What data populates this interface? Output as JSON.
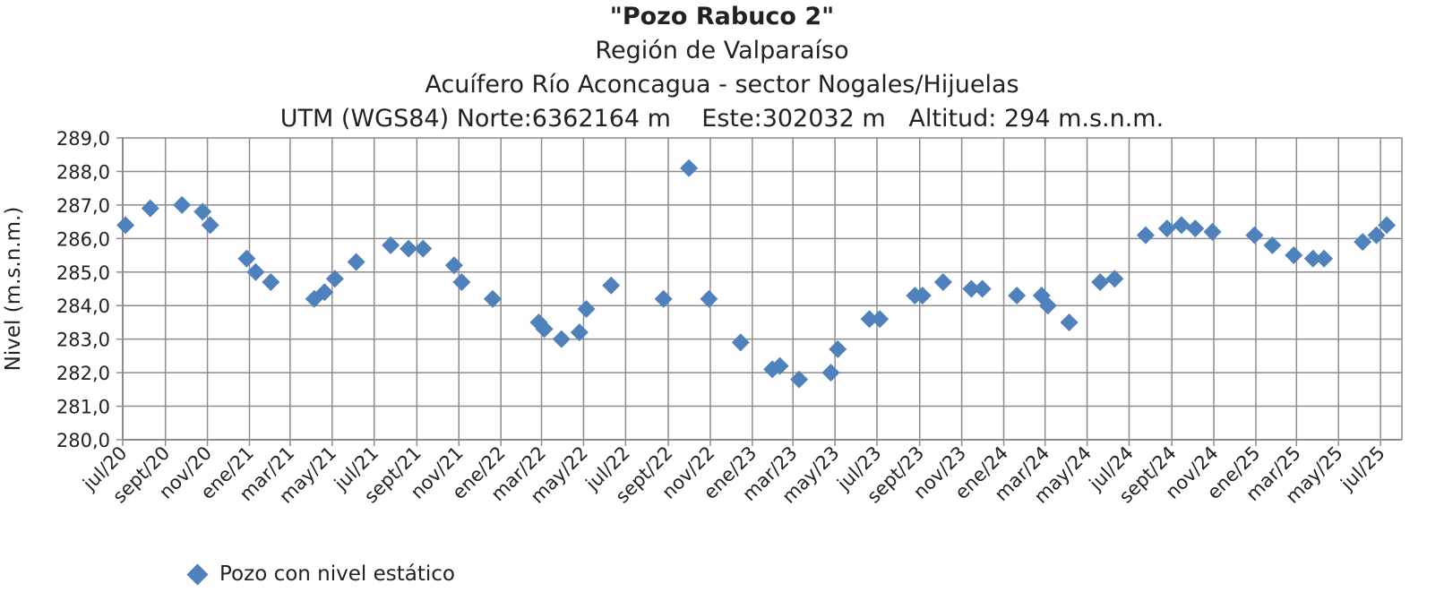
{
  "chart_data": {
    "type": "scatter",
    "title": "\"Pozo Rabuco 2\"",
    "subtitle_lines": [
      "Región de Valparaíso",
      "Acuífero Río Aconcagua - sector Nogales/Hijuelas",
      "UTM (WGS84) Norte:6362164 m    Este:302032 m   Altitud: 294 m.s.n.m."
    ],
    "ylabel": "Nivel (m.s.n.m.)",
    "xlabel": "",
    "ylim": [
      280.0,
      289.0
    ],
    "yticks": [
      "280,0",
      "281,0",
      "282,0",
      "283,0",
      "284,0",
      "285,0",
      "286,0",
      "287,0",
      "288,0",
      "289,0"
    ],
    "x_range": [
      "2020-07-01",
      "2025-08-01"
    ],
    "xticks": [
      {
        "date": "2020-07-01",
        "label": "jul/20"
      },
      {
        "date": "2020-09-01",
        "label": "sept/20"
      },
      {
        "date": "2020-11-01",
        "label": "nov/20"
      },
      {
        "date": "2021-01-01",
        "label": "ene/21"
      },
      {
        "date": "2021-03-01",
        "label": "mar/21"
      },
      {
        "date": "2021-05-01",
        "label": "may/21"
      },
      {
        "date": "2021-07-01",
        "label": "jul/21"
      },
      {
        "date": "2021-09-01",
        "label": "sept/21"
      },
      {
        "date": "2021-11-01",
        "label": "nov/21"
      },
      {
        "date": "2022-01-01",
        "label": "ene/22"
      },
      {
        "date": "2022-03-01",
        "label": "mar/22"
      },
      {
        "date": "2022-05-01",
        "label": "may/22"
      },
      {
        "date": "2022-07-01",
        "label": "jul/22"
      },
      {
        "date": "2022-09-01",
        "label": "sept/22"
      },
      {
        "date": "2022-11-01",
        "label": "nov/22"
      },
      {
        "date": "2023-01-01",
        "label": "ene/23"
      },
      {
        "date": "2023-03-01",
        "label": "mar/23"
      },
      {
        "date": "2023-05-01",
        "label": "may/23"
      },
      {
        "date": "2023-07-01",
        "label": "jul/23"
      },
      {
        "date": "2023-09-01",
        "label": "sept/23"
      },
      {
        "date": "2023-11-01",
        "label": "nov/23"
      },
      {
        "date": "2024-01-01",
        "label": "ene/24"
      },
      {
        "date": "2024-03-01",
        "label": "mar/24"
      },
      {
        "date": "2024-05-01",
        "label": "may/24"
      },
      {
        "date": "2024-07-01",
        "label": "jul/24"
      },
      {
        "date": "2024-09-01",
        "label": "sept/24"
      },
      {
        "date": "2024-11-01",
        "label": "nov/24"
      },
      {
        "date": "2025-01-01",
        "label": "ene/25"
      },
      {
        "date": "2025-03-01",
        "label": "mar/25"
      },
      {
        "date": "2025-05-01",
        "label": "may/25"
      },
      {
        "date": "2025-07-01",
        "label": "jul/25"
      }
    ],
    "grid": true,
    "legend_position": "bottom-left",
    "series": [
      {
        "name": "Pozo con nivel estático",
        "color": "#4f81bd",
        "marker": "diamond",
        "points": [
          {
            "x": "2020-07-05",
            "y": 286.4
          },
          {
            "x": "2020-08-10",
            "y": 286.9
          },
          {
            "x": "2020-09-25",
            "y": 287.0
          },
          {
            "x": "2020-10-25",
            "y": 286.8
          },
          {
            "x": "2020-11-05",
            "y": 286.4
          },
          {
            "x": "2020-12-28",
            "y": 285.4
          },
          {
            "x": "2021-01-10",
            "y": 285.0
          },
          {
            "x": "2021-02-01",
            "y": 284.7
          },
          {
            "x": "2021-04-05",
            "y": 284.2
          },
          {
            "x": "2021-04-20",
            "y": 284.4
          },
          {
            "x": "2021-05-05",
            "y": 284.8
          },
          {
            "x": "2021-06-05",
            "y": 285.3
          },
          {
            "x": "2021-07-25",
            "y": 285.8
          },
          {
            "x": "2021-08-20",
            "y": 285.7
          },
          {
            "x": "2021-09-10",
            "y": 285.7
          },
          {
            "x": "2021-10-25",
            "y": 285.2
          },
          {
            "x": "2021-11-05",
            "y": 284.7
          },
          {
            "x": "2021-12-20",
            "y": 284.2
          },
          {
            "x": "2022-02-25",
            "y": 283.5
          },
          {
            "x": "2022-03-05",
            "y": 283.3
          },
          {
            "x": "2022-03-30",
            "y": 283.0
          },
          {
            "x": "2022-04-25",
            "y": 283.2
          },
          {
            "x": "2022-05-05",
            "y": 283.9
          },
          {
            "x": "2022-06-10",
            "y": 284.6
          },
          {
            "x": "2022-08-25",
            "y": 284.2
          },
          {
            "x": "2022-10-01",
            "y": 288.1
          },
          {
            "x": "2022-10-30",
            "y": 284.2
          },
          {
            "x": "2022-12-15",
            "y": 282.9
          },
          {
            "x": "2023-01-30",
            "y": 282.1
          },
          {
            "x": "2023-02-10",
            "y": 282.2
          },
          {
            "x": "2023-03-10",
            "y": 281.8
          },
          {
            "x": "2023-04-25",
            "y": 282.0
          },
          {
            "x": "2023-05-05",
            "y": 282.7
          },
          {
            "x": "2023-06-20",
            "y": 283.6
          },
          {
            "x": "2023-07-05",
            "y": 283.6
          },
          {
            "x": "2023-08-25",
            "y": 284.3
          },
          {
            "x": "2023-09-05",
            "y": 284.3
          },
          {
            "x": "2023-10-05",
            "y": 284.7
          },
          {
            "x": "2023-11-15",
            "y": 284.5
          },
          {
            "x": "2023-12-01",
            "y": 284.5
          },
          {
            "x": "2024-01-20",
            "y": 284.3
          },
          {
            "x": "2024-02-25",
            "y": 284.3
          },
          {
            "x": "2024-03-05",
            "y": 284.0
          },
          {
            "x": "2024-04-05",
            "y": 283.5
          },
          {
            "x": "2024-05-20",
            "y": 284.7
          },
          {
            "x": "2024-06-10",
            "y": 284.8
          },
          {
            "x": "2024-07-25",
            "y": 286.1
          },
          {
            "x": "2024-08-25",
            "y": 286.3
          },
          {
            "x": "2024-09-15",
            "y": 286.4
          },
          {
            "x": "2024-10-05",
            "y": 286.3
          },
          {
            "x": "2024-10-30",
            "y": 286.2
          },
          {
            "x": "2024-12-30",
            "y": 286.1
          },
          {
            "x": "2025-01-25",
            "y": 285.8
          },
          {
            "x": "2025-02-25",
            "y": 285.5
          },
          {
            "x": "2025-03-25",
            "y": 285.4
          },
          {
            "x": "2025-04-10",
            "y": 285.4
          },
          {
            "x": "2025-06-05",
            "y": 285.9
          },
          {
            "x": "2025-06-25",
            "y": 286.1
          },
          {
            "x": "2025-07-10",
            "y": 286.4
          }
        ]
      }
    ]
  },
  "legend": {
    "label": "Pozo con nivel estático",
    "icon": "diamond-marker-icon"
  }
}
